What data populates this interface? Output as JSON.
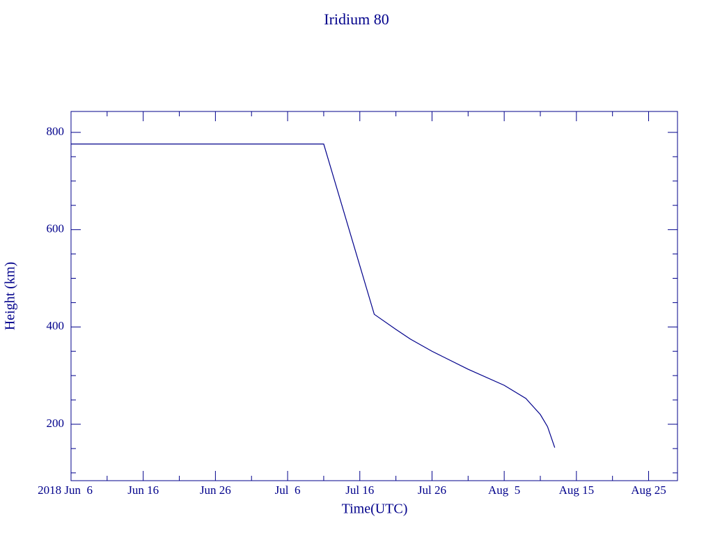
{
  "chart_data": {
    "type": "line",
    "title": "Iridium 80",
    "xlabel": "Time(UTC)",
    "ylabel": "Height (km)",
    "x": [
      "2018-06-06",
      "2018-07-11",
      "2018-07-18",
      "2018-07-21",
      "2018-07-23",
      "2018-07-26",
      "2018-07-31",
      "2018-08-05",
      "2018-08-08",
      "2018-08-10",
      "2018-08-11",
      "2018-08-12"
    ],
    "series": [
      {
        "name": "Iridium 80",
        "color": "#00008b",
        "values": [
          776,
          776,
          426,
          395,
          375,
          350,
          313,
          280,
          253,
          220,
          195,
          152
        ]
      }
    ],
    "xlim": [
      "2018-06-06",
      "2018-08-29"
    ],
    "xticks": [
      {
        "value": "2018-06-06",
        "label": "2018 Jun  6"
      },
      {
        "value": "2018-06-16",
        "label": "Jun 16"
      },
      {
        "value": "2018-06-26",
        "label": "Jun 26"
      },
      {
        "value": "2018-07-06",
        "label": "Jul  6"
      },
      {
        "value": "2018-07-16",
        "label": "Jul 16"
      },
      {
        "value": "2018-07-26",
        "label": "Jul 26"
      },
      {
        "value": "2018-08-05",
        "label": "Aug  5"
      },
      {
        "value": "2018-08-15",
        "label": "Aug 15"
      },
      {
        "value": "2018-08-25",
        "label": "Aug 25"
      }
    ],
    "ylim": [
      84,
      843
    ],
    "yticks": [
      200,
      400,
      600,
      800
    ],
    "grid": false
  }
}
